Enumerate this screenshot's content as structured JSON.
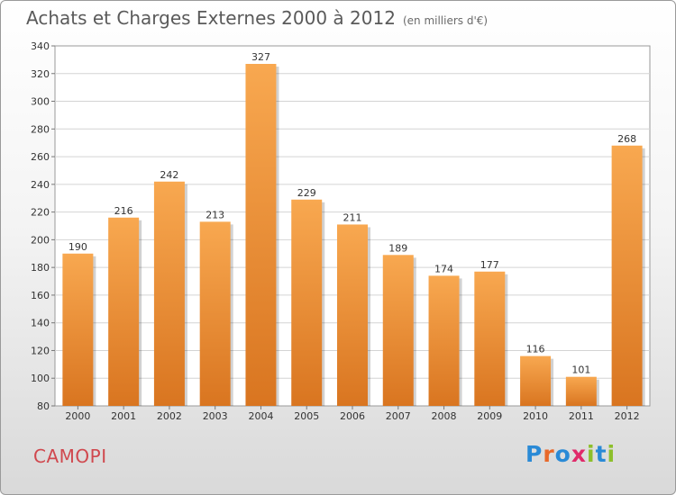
{
  "header": {
    "title": "Achats et Charges Externes 2000 à 2012",
    "unit": "(en milliers d'€)"
  },
  "place": "CAMOPI",
  "logo": {
    "text": "Proxiti",
    "letter_colors": [
      "#2a8ad6",
      "#e8692a",
      "#2a8ad6",
      "#e02a6a",
      "#8dbf2b",
      "#2a8ad6",
      "#8dbf2b"
    ]
  },
  "colors": {
    "bar_top": "#f8a850",
    "bar_bottom": "#d97520",
    "title": "#5a5a5a",
    "place": "#d0484e"
  },
  "chart_data": {
    "type": "bar",
    "title": "Achats et Charges Externes 2000 à 2012",
    "subtitle": "(en milliers d'€)",
    "categories": [
      "2000",
      "2001",
      "2002",
      "2003",
      "2004",
      "2005",
      "2006",
      "2007",
      "2008",
      "2009",
      "2010",
      "2011",
      "2012"
    ],
    "values": [
      190,
      216,
      242,
      213,
      327,
      229,
      211,
      189,
      174,
      177,
      116,
      101,
      268
    ],
    "ylim": [
      80,
      340
    ],
    "yticks": [
      80,
      100,
      120,
      140,
      160,
      180,
      200,
      220,
      240,
      260,
      280,
      300,
      320,
      340
    ],
    "grid": true,
    "data_labels": true
  }
}
